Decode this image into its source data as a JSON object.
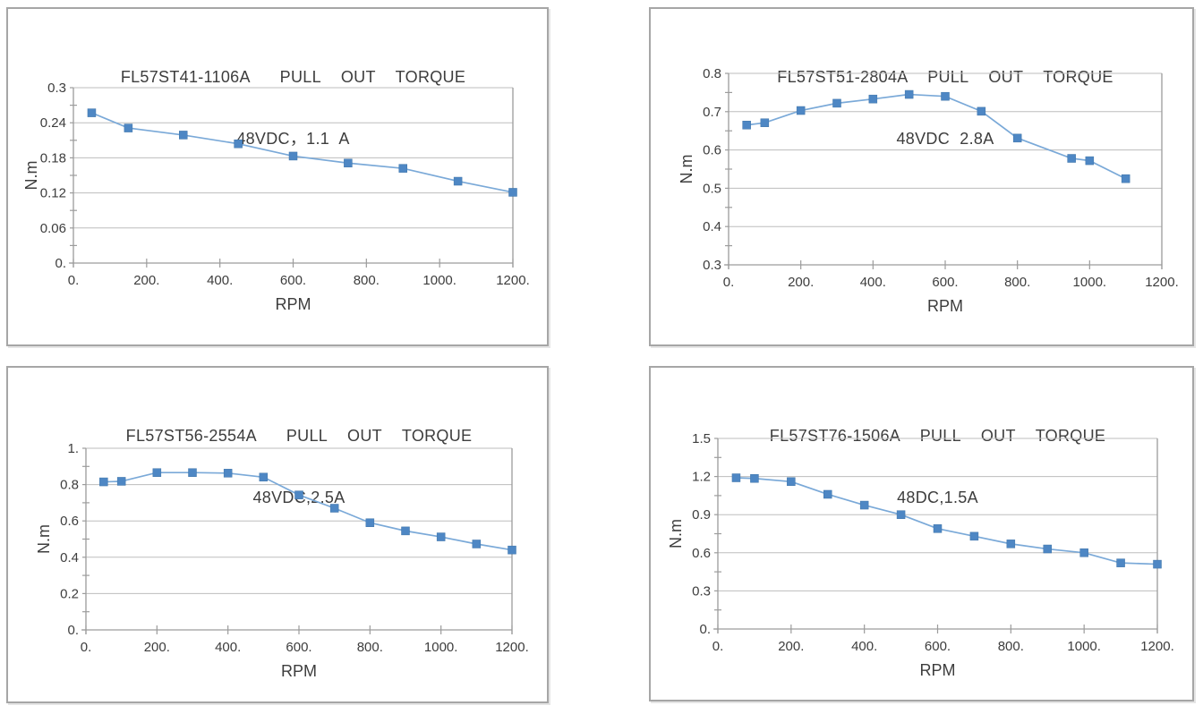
{
  "page": {
    "background": "#ffffff",
    "description_colors": {
      "box_border": "#a6a6a6",
      "gridline": "#bdbdbd",
      "axis": "#9c9c9c",
      "line": "#7aa9d8",
      "marker": "#4e87c4",
      "text": "#3d3d3d"
    }
  },
  "chart_data": [
    {
      "type": "line",
      "title": "FL57ST41-1106A   PULL  OUT  TORQUE",
      "subtitle": "48VDC，1.1 A",
      "xlabel": "RPM",
      "ylabel": "N.m",
      "xlim": [
        0,
        1200
      ],
      "ylim": [
        0,
        0.3
      ],
      "xticks": [
        0,
        200,
        400,
        600,
        800,
        1000,
        1200
      ],
      "xtick_labels": [
        "0.",
        "200.",
        "400.",
        "600.",
        "800.",
        "1000.",
        "1200."
      ],
      "yticks": [
        0,
        0.06,
        0.12,
        0.18,
        0.24,
        0.3
      ],
      "ytick_labels": [
        "0.",
        "0.06",
        "0.12",
        "0.18",
        "0.24",
        "0.3"
      ],
      "grid": true,
      "legend": "none",
      "x": [
        50,
        150,
        300,
        450,
        600,
        750,
        900,
        1050,
        1200
      ],
      "y": [
        0.257,
        0.231,
        0.219,
        0.204,
        0.183,
        0.171,
        0.162,
        0.14,
        0.121
      ]
    },
    {
      "type": "line",
      "title": "FL57ST51-2804A  PULL  OUT  TORQUE",
      "subtitle": "48VDC 2.8A",
      "xlabel": "RPM",
      "ylabel": "N.m",
      "xlim": [
        0,
        1200
      ],
      "ylim": [
        0.3,
        0.8
      ],
      "xticks": [
        0,
        200,
        400,
        600,
        800,
        1000,
        1200
      ],
      "xtick_labels": [
        "0.",
        "200.",
        "400.",
        "600.",
        "800.",
        "1000.",
        "1200."
      ],
      "yticks": [
        0.3,
        0.4,
        0.5,
        0.6,
        0.7,
        0.8
      ],
      "ytick_labels": [
        "0.3",
        "0.4",
        "0.5",
        "0.6",
        "0.7",
        "0.8"
      ],
      "grid": true,
      "legend": "none",
      "x": [
        50,
        100,
        200,
        300,
        400,
        500,
        600,
        700,
        800,
        950,
        1000,
        1100
      ],
      "y": [
        0.665,
        0.671,
        0.703,
        0.722,
        0.733,
        0.745,
        0.74,
        0.701,
        0.631,
        0.578,
        0.572,
        0.525
      ]
    },
    {
      "type": "line",
      "title": "FL57ST56-2554A   PULL  OUT  TORQUE",
      "subtitle": "48VDC,2.5A",
      "xlabel": "RPM",
      "ylabel": "N.m",
      "xlim": [
        0,
        1200
      ],
      "ylim": [
        0,
        1.0
      ],
      "xticks": [
        0,
        200,
        400,
        600,
        800,
        1000,
        1200
      ],
      "xtick_labels": [
        "0.",
        "200.",
        "400.",
        "600.",
        "800.",
        "1000.",
        "1200."
      ],
      "yticks": [
        0,
        0.2,
        0.4,
        0.6,
        0.8,
        1.0
      ],
      "ytick_labels": [
        "0.",
        "0.2",
        "0.4",
        "0.6",
        "0.8",
        "1."
      ],
      "grid": true,
      "legend": "none",
      "x": [
        50,
        100,
        200,
        300,
        400,
        500,
        600,
        700,
        800,
        900,
        1000,
        1100,
        1200
      ],
      "y": [
        0.815,
        0.818,
        0.866,
        0.866,
        0.863,
        0.841,
        0.743,
        0.67,
        0.59,
        0.545,
        0.512,
        0.473,
        0.44
      ]
    },
    {
      "type": "line",
      "title": "FL57ST76-1506A  PULL  OUT  TORQUE",
      "subtitle": "48DC,1.5A",
      "xlabel": "RPM",
      "ylabel": "N.m",
      "xlim": [
        0,
        1200
      ],
      "ylim": [
        0,
        1.5
      ],
      "xticks": [
        0,
        200,
        400,
        600,
        800,
        1000,
        1200
      ],
      "xtick_labels": [
        "0.",
        "200.",
        "400.",
        "600.",
        "800.",
        "1000.",
        "1200."
      ],
      "yticks": [
        0,
        0.3,
        0.6,
        0.9,
        1.2,
        1.5
      ],
      "ytick_labels": [
        "0.",
        "0.3",
        "0.6",
        "0.9",
        "1.2",
        "1.5"
      ],
      "grid": true,
      "legend": "none",
      "x": [
        50,
        100,
        200,
        300,
        400,
        500,
        600,
        700,
        800,
        900,
        1000,
        1100,
        1200
      ],
      "y": [
        1.19,
        1.185,
        1.16,
        1.06,
        0.975,
        0.9,
        0.79,
        0.73,
        0.67,
        0.63,
        0.6,
        0.52,
        0.51
      ]
    }
  ]
}
